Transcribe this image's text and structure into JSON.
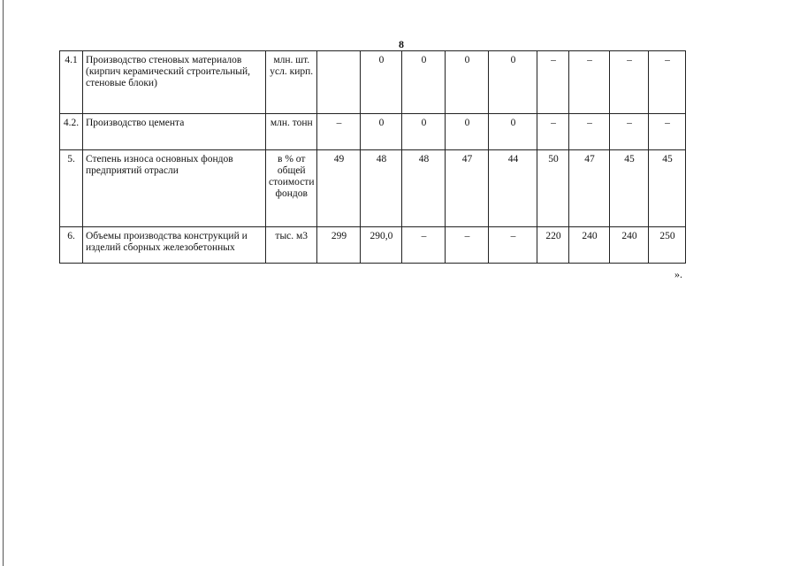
{
  "page_number": "8",
  "rows": [
    {
      "num": "4.1",
      "name": "Производство стеновых материалов (кирпич керамический строительный, стеновые блоки)",
      "unit": "млн. шт. усл. кирп.",
      "values": [
        "",
        "0",
        "0",
        "0",
        "0",
        "–",
        "–",
        "–",
        "–"
      ]
    },
    {
      "num": "4.2.",
      "name": "Производство цемента",
      "unit": "млн. тонн",
      "values": [
        "–",
        "0",
        "0",
        "0",
        "0",
        "–",
        "–",
        "–",
        "–"
      ]
    },
    {
      "num": "5.",
      "name": "Степень износа основных фондов предприятий отрасли",
      "unit": "в % от общей стоимости фондов",
      "values": [
        "49",
        "48",
        "48",
        "47",
        "44",
        "50",
        "47",
        "45",
        "45"
      ]
    },
    {
      "num": "6.",
      "name": "Объемы производства конструкций и изделий сборных железобетонных",
      "unit": "тыс. м3",
      "values": [
        "299",
        "290,0",
        "–",
        "–",
        "–",
        "220",
        "240",
        "240",
        "250"
      ]
    }
  ],
  "closing_mark": "»."
}
